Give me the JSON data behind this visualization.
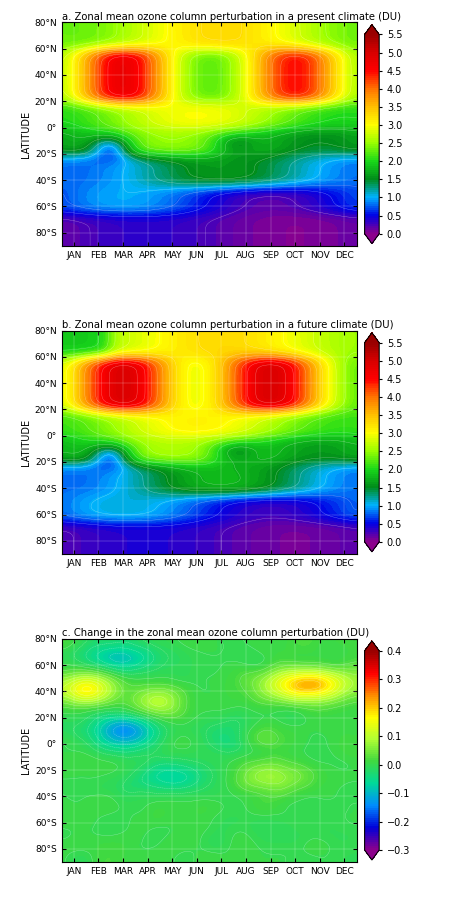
{
  "title_a": "a. Zonal mean ozone column perturbation in a present climate (DU)",
  "title_b": "b. Zonal mean ozone column perturbation in a future climate (DU)",
  "title_c": "c. Change in the zonal mean ozone column perturbation (DU)",
  "months": [
    "JAN",
    "FEB",
    "MAR",
    "APR",
    "MAY",
    "JUN",
    "JUL",
    "AUG",
    "SEP",
    "OCT",
    "NOV",
    "DEC"
  ],
  "lat_ticks": [
    -80,
    -60,
    -40,
    -20,
    0,
    20,
    40,
    60,
    80
  ],
  "lat_labels": [
    "80°S",
    "60°S",
    "40°S",
    "20°S",
    "0°",
    "20°N",
    "40°N",
    "60°N",
    "80°N"
  ],
  "vmin_ab": 0.0,
  "vmax_ab": 5.5,
  "vmin_c": -0.3,
  "vmax_c": 0.4,
  "colorbar_ticks_ab": [
    0.0,
    0.5,
    1.0,
    1.5,
    2.0,
    2.5,
    3.0,
    3.5,
    4.0,
    4.5,
    5.0,
    5.5
  ],
  "colorbar_ticks_c": [
    -0.3,
    -0.2,
    -0.1,
    0.0,
    0.1,
    0.2,
    0.3,
    0.4
  ],
  "ylabel": "LATITUDE",
  "background_color": "#ffffff",
  "figsize": [
    4.74,
    8.98
  ],
  "dpi": 100
}
